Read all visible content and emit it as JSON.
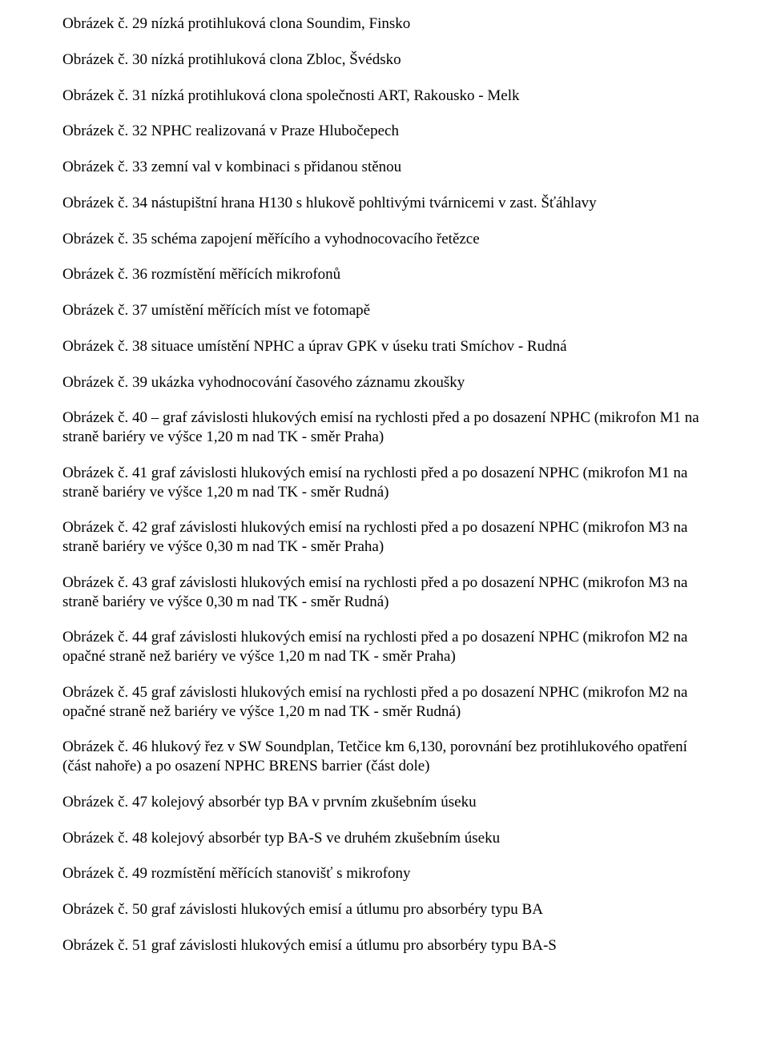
{
  "items": [
    {
      "text": "Obrázek č. 29 nízká protihluková clona Soundim, Finsko"
    },
    {
      "text": "Obrázek č. 30 nízká protihluková clona Zbloc, Švédsko"
    },
    {
      "text": "Obrázek č. 31 nízká protihluková clona společnosti ART, Rakousko - Melk"
    },
    {
      "text": "Obrázek č. 32 NPHC realizovaná v Praze Hlubočepech"
    },
    {
      "text": "Obrázek č. 33 zemní val v kombinaci s přidanou stěnou"
    },
    {
      "text": "Obrázek č. 34 nástupištní hrana H130 s hlukově pohltivými tvárnicemi v zast. Šťáhlavy"
    },
    {
      "text": "Obrázek č. 35 schéma zapojení měřícího a vyhodnocovacího řetězce"
    },
    {
      "text": "Obrázek č. 36 rozmístění měřících mikrofonů"
    },
    {
      "text": "Obrázek č. 37 umístění měřících míst ve fotomapě"
    },
    {
      "text": "Obrázek č. 38 situace umístění NPHC a úprav GPK v úseku trati Smíchov - Rudná"
    },
    {
      "text": "Obrázek č. 39 ukázka vyhodnocování časového záznamu zkoušky"
    },
    {
      "text": "Obrázek č. 40 – graf závislosti hlukových emisí na rychlosti před a po dosazení NPHC (mikrofon M1 na straně bariéry ve výšce 1,20 m nad TK - směr Praha)"
    },
    {
      "text": "Obrázek č. 41 graf závislosti hlukových emisí na rychlosti před a po dosazení NPHC (mikrofon M1 na straně bariéry ve výšce 1,20 m nad TK - směr Rudná)"
    },
    {
      "text": "Obrázek č. 42  graf závislosti hlukových emisí na rychlosti před a po dosazení NPHC (mikrofon M3 na straně bariéry ve výšce 0,30 m nad TK - směr Praha)"
    },
    {
      "text": "Obrázek č. 43 graf závislosti hlukových emisí na rychlosti před a po dosazení NPHC (mikrofon M3 na straně bariéry ve výšce 0,30 m nad TK - směr Rudná)"
    },
    {
      "text": "Obrázek č. 44  graf závislosti hlukových emisí na rychlosti před a po dosazení NPHC (mikrofon M2 na opačné straně než bariéry ve výšce 1,20 m nad TK - směr Praha)"
    },
    {
      "text": "Obrázek č. 45  graf závislosti hlukových emisí na rychlosti před a po dosazení NPHC (mikrofon M2 na opačné straně než bariéry ve výšce 1,20 m nad TK - směr Rudná)"
    },
    {
      "text": "Obrázek č. 46 hlukový řez v SW Soundplan, Tetčice km 6,130, porovnání bez protihlukového opatření (část nahoře) a po osazení  NPHC BRENS barrier (část dole)"
    },
    {
      "text": "Obrázek č. 47  kolejový absorbér typ BA v prvním zkušebním úseku"
    },
    {
      "text": "Obrázek č. 48  kolejový absorbér typ BA-S ve druhém zkušebním úseku"
    },
    {
      "text": "Obrázek č. 49  rozmístění měřících stanovišť s mikrofony"
    },
    {
      "text": "Obrázek č. 50  graf závislosti hlukových emisí a útlumu pro absorbéry typu BA"
    },
    {
      "text": "Obrázek č. 51  graf závislosti hlukových emisí a útlumu pro absorbéry typu BA-S"
    }
  ]
}
